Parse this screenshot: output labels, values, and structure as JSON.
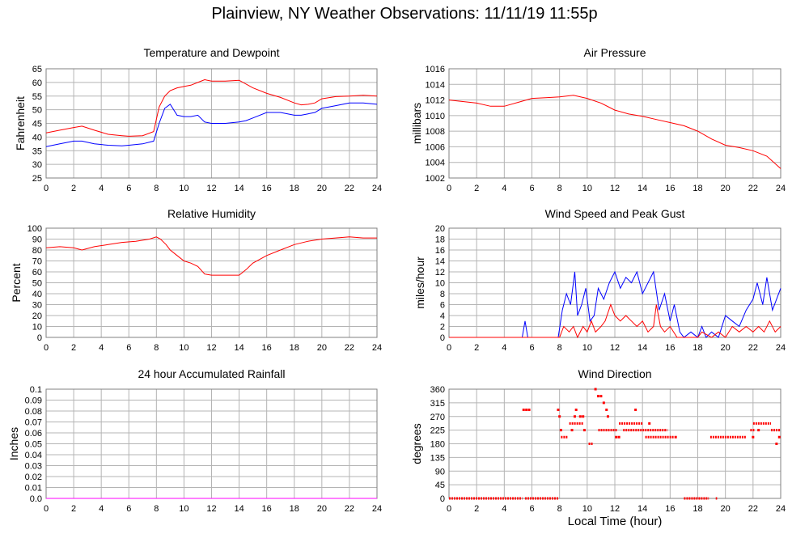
{
  "title": "Plainview, NY Weather Observations: 11/11/19 11:55p",
  "x_axis_label": "Local Time (hour)",
  "chart_data": [
    {
      "type": "line",
      "title": "Temperature and Dewpoint",
      "ylabel": "Fahrenheit",
      "xlim": [
        0,
        24
      ],
      "ylim": [
        25,
        65
      ],
      "xticks": [
        0,
        2,
        4,
        6,
        8,
        10,
        12,
        14,
        16,
        18,
        20,
        22,
        24
      ],
      "yticks": [
        25,
        30,
        35,
        40,
        45,
        50,
        55,
        60,
        65
      ],
      "grid": true,
      "series": [
        {
          "color": "#ff0000",
          "x": [
            0,
            1,
            2,
            2.6,
            3.5,
            4.5,
            5.5,
            6,
            7,
            7.8,
            8.2,
            8.6,
            9,
            9.5,
            10,
            10.5,
            11,
            11.5,
            12,
            13,
            14,
            15,
            16,
            17,
            18,
            18.5,
            19,
            19.5,
            20,
            21,
            22,
            23,
            24
          ],
          "y": [
            41.5,
            42.5,
            43.5,
            44,
            42.5,
            41,
            40.5,
            40.3,
            40.5,
            42,
            51,
            55,
            57,
            58,
            58.5,
            59,
            60,
            61,
            60.5,
            60.5,
            60.8,
            58,
            56,
            54.5,
            52.5,
            51.8,
            52,
            52.5,
            54,
            54.8,
            55,
            55.3,
            55
          ]
        },
        {
          "color": "#0000ff",
          "x": [
            0,
            1,
            2,
            2.6,
            3.5,
            4.5,
            5.5,
            6,
            7,
            7.8,
            8.2,
            8.6,
            9,
            9.5,
            10,
            10.5,
            11,
            11.5,
            12,
            13,
            14,
            14.5,
            15,
            16,
            17,
            18,
            18.5,
            19,
            19.5,
            20,
            21,
            22,
            23,
            24
          ],
          "y": [
            36.5,
            37.5,
            38.5,
            38.5,
            37.5,
            37,
            36.8,
            37,
            37.5,
            38.5,
            45,
            50.5,
            52,
            48,
            47.5,
            47.5,
            48,
            45.5,
            45,
            45,
            45.5,
            46,
            47,
            49,
            49,
            48,
            48,
            48.5,
            49,
            50.5,
            51.5,
            52.5,
            52.5,
            52
          ]
        }
      ]
    },
    {
      "type": "line",
      "title": "Air Pressure",
      "ylabel": "millibars",
      "xlim": [
        0,
        24
      ],
      "ylim": [
        1002,
        1016
      ],
      "xticks": [
        0,
        2,
        4,
        6,
        8,
        10,
        12,
        14,
        16,
        18,
        20,
        22,
        24
      ],
      "yticks": [
        1002,
        1004,
        1006,
        1008,
        1010,
        1012,
        1014,
        1016
      ],
      "grid": true,
      "series": [
        {
          "color": "#ff0000",
          "x": [
            0,
            1,
            2,
            3,
            4,
            5,
            6,
            7,
            8,
            9,
            10,
            11,
            12,
            13,
            14,
            15,
            16,
            17,
            18,
            19,
            20,
            21,
            22,
            23,
            24
          ],
          "y": [
            1012,
            1011.8,
            1011.6,
            1011.2,
            1011.2,
            1011.7,
            1012.2,
            1012.3,
            1012.4,
            1012.6,
            1012.2,
            1011.6,
            1010.7,
            1010.2,
            1009.9,
            1009.5,
            1009.1,
            1008.7,
            1008,
            1007,
            1006.2,
            1005.9,
            1005.5,
            1004.8,
            1003.2
          ]
        }
      ]
    },
    {
      "type": "line",
      "title": "Relative Humidity",
      "ylabel": "Percent",
      "xlim": [
        0,
        24
      ],
      "ylim": [
        0,
        100
      ],
      "xticks": [
        0,
        2,
        4,
        6,
        8,
        10,
        12,
        14,
        16,
        18,
        20,
        22,
        24
      ],
      "yticks": [
        0,
        10,
        20,
        30,
        40,
        50,
        60,
        70,
        80,
        90,
        100
      ],
      "grid": true,
      "series": [
        {
          "color": "#ff0000",
          "x": [
            0,
            1,
            2,
            2.6,
            3.5,
            4.5,
            5.5,
            6.5,
            7.5,
            8,
            8.3,
            8.7,
            9,
            9.5,
            10,
            10.5,
            11,
            11.5,
            12,
            13,
            14,
            14.5,
            15,
            16,
            17,
            18,
            19,
            20,
            21,
            22,
            23,
            24
          ],
          "y": [
            82,
            83,
            82,
            80,
            83,
            85,
            87,
            88,
            90,
            92,
            90,
            85,
            80,
            75,
            70,
            68,
            65,
            58,
            57,
            57,
            57,
            62,
            68,
            75,
            80,
            85,
            88,
            90,
            91,
            92,
            91,
            91
          ]
        }
      ]
    },
    {
      "type": "line",
      "title": "Wind Speed and Peak Gust",
      "ylabel": "miles/hour",
      "xlim": [
        0,
        24
      ],
      "ylim": [
        0,
        20
      ],
      "xticks": [
        0,
        2,
        4,
        6,
        8,
        10,
        12,
        14,
        16,
        18,
        20,
        22,
        24
      ],
      "yticks": [
        0,
        2,
        4,
        6,
        8,
        10,
        12,
        14,
        16,
        18,
        20
      ],
      "grid": true,
      "series": [
        {
          "color": "#0000ff",
          "x": [
            0,
            5.3,
            5.5,
            5.7,
            7.9,
            8.2,
            8.5,
            8.8,
            9.1,
            9.3,
            9.6,
            9.9,
            10.2,
            10.5,
            10.8,
            11.2,
            11.6,
            12,
            12.4,
            12.8,
            13.2,
            13.6,
            14,
            14.4,
            14.8,
            15.2,
            15.6,
            16,
            16.3,
            16.7,
            17,
            17.5,
            18,
            18.3,
            18.6,
            19,
            19.5,
            20,
            20.5,
            21,
            21.5,
            22,
            22.3,
            22.7,
            23,
            23.4,
            23.7,
            24
          ],
          "y": [
            0,
            0,
            3,
            0,
            0,
            5,
            8,
            6,
            12,
            4,
            6,
            9,
            3,
            4,
            9,
            7,
            10,
            12,
            9,
            11,
            10,
            12,
            8,
            10,
            12,
            5,
            8,
            3,
            6,
            1,
            0,
            1,
            0,
            2,
            0,
            1,
            0,
            4,
            3,
            2,
            5,
            7,
            10,
            6,
            11,
            5,
            7,
            9
          ]
        },
        {
          "color": "#ff0000",
          "x": [
            0,
            8,
            8.3,
            8.7,
            9,
            9.3,
            9.7,
            10,
            10.3,
            10.6,
            11,
            11.3,
            11.7,
            12,
            12.4,
            12.8,
            13.2,
            13.6,
            14,
            14.4,
            14.8,
            15,
            15.3,
            15.6,
            16,
            16.5,
            17,
            18,
            18.3,
            19,
            19.5,
            20,
            20.5,
            21,
            21.5,
            22,
            22.4,
            22.8,
            23.2,
            23.6,
            24
          ],
          "y": [
            0,
            0,
            2,
            1,
            2,
            0,
            2,
            1,
            3,
            1,
            2,
            3,
            6,
            4,
            3,
            4,
            3,
            2,
            3,
            1,
            2,
            6,
            2,
            1,
            2,
            0,
            0,
            0,
            1,
            0,
            1,
            0,
            2,
            1,
            2,
            1,
            2,
            1,
            3,
            1,
            2
          ]
        }
      ]
    },
    {
      "type": "line",
      "title": "24 hour Accumulated Rainfall",
      "ylabel": "Inches",
      "xlim": [
        0,
        24
      ],
      "ylim": [
        0,
        0.1
      ],
      "xticks": [
        0,
        2,
        4,
        6,
        8,
        10,
        12,
        14,
        16,
        18,
        20,
        22,
        24
      ],
      "yticks": [
        0.0,
        0.01,
        0.02,
        0.03,
        0.04,
        0.05,
        0.06,
        0.07,
        0.08,
        0.09,
        0.1
      ],
      "ytick_labels": [
        "0.0",
        "0.01",
        "0.02",
        "0.03",
        "0.04",
        "0.05",
        "0.06",
        "0.07",
        "0.08",
        "0.09",
        "0.1"
      ],
      "grid": true,
      "series": [
        {
          "color": "#ff00ff",
          "x": [
            0,
            24
          ],
          "y": [
            0,
            0
          ]
        }
      ]
    },
    {
      "type": "scatter",
      "title": "Wind Direction",
      "ylabel": "degrees",
      "xlim": [
        0,
        24
      ],
      "ylim": [
        0,
        360
      ],
      "xticks": [
        0,
        2,
        4,
        6,
        8,
        10,
        12,
        14,
        16,
        18,
        20,
        22,
        24
      ],
      "yticks": [
        0,
        45,
        90,
        135,
        180,
        225,
        270,
        315,
        360
      ],
      "grid": true,
      "series": [
        {
          "color": "#ff0000",
          "segments": [
            {
              "x0": 0,
              "x1": 5.3,
              "y": 0
            },
            {
              "x0": 5.5,
              "x1": 7.9,
              "y": 0
            },
            {
              "x0": 17,
              "x1": 18.8,
              "y": 0
            },
            {
              "x0": 19.3,
              "x1": 19.4,
              "y": 0
            },
            {
              "x0": 8.1,
              "x1": 8.6,
              "y": 202
            },
            {
              "x0": 18.9,
              "x1": 21.5,
              "y": 202
            },
            {
              "x0": 14.2,
              "x1": 16.3,
              "y": 202
            },
            {
              "x0": 10.8,
              "x1": 12.2,
              "y": 225
            },
            {
              "x0": 12.6,
              "x1": 15.8,
              "y": 225
            },
            {
              "x0": 23.3,
              "x1": 24,
              "y": 225
            },
            {
              "x0": 12.3,
              "x1": 14.0,
              "y": 247
            },
            {
              "x0": 22.0,
              "x1": 23.3,
              "y": 247
            },
            {
              "x0": 8.7,
              "x1": 9.7,
              "y": 247
            },
            {
              "x0": 10.1,
              "x1": 10.4,
              "y": 180
            },
            {
              "x0": 21.8,
              "x1": 22.1,
              "y": 225
            }
          ],
          "points": [
            [
              5.4,
              292
            ],
            [
              5.6,
              292
            ],
            [
              5.8,
              292
            ],
            [
              7.9,
              292
            ],
            [
              8.0,
              270
            ],
            [
              8.1,
              225
            ],
            [
              8.9,
              225
            ],
            [
              9.1,
              270
            ],
            [
              9.2,
              292
            ],
            [
              9.5,
              270
            ],
            [
              9.7,
              270
            ],
            [
              9.8,
              225
            ],
            [
              10.6,
              360
            ],
            [
              10.8,
              337
            ],
            [
              11.0,
              337
            ],
            [
              11.2,
              315
            ],
            [
              11.4,
              292
            ],
            [
              11.5,
              270
            ],
            [
              12.1,
              202
            ],
            [
              12.3,
              202
            ],
            [
              13.5,
              292
            ],
            [
              14.5,
              247
            ],
            [
              16.4,
              202
            ],
            [
              22.0,
              202
            ],
            [
              22.4,
              225
            ],
            [
              23.7,
              180
            ],
            [
              23.9,
              202
            ]
          ]
        }
      ]
    }
  ]
}
